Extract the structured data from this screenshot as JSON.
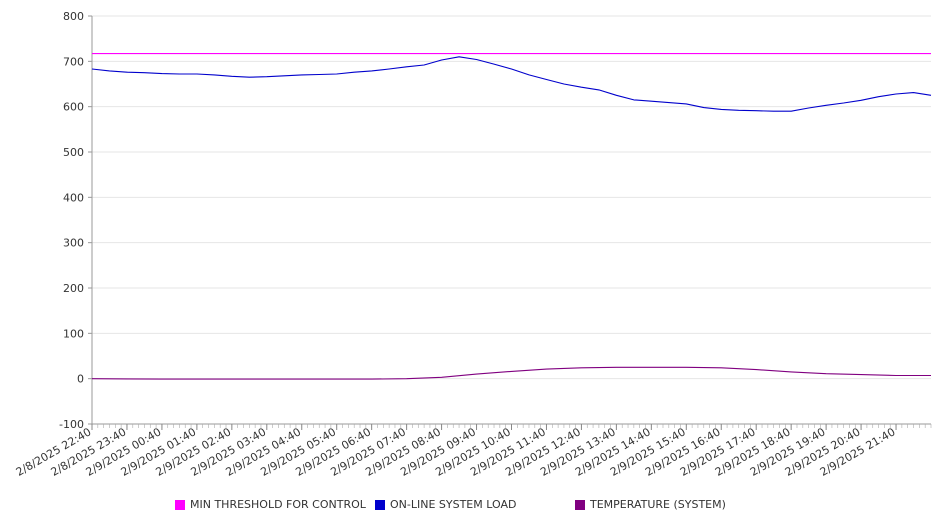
{
  "chart_data": {
    "type": "line",
    "title": "",
    "xlabel": "",
    "ylabel": "",
    "ylim": [
      -100,
      800
    ],
    "y_ticks": [
      "800",
      "700",
      "600",
      "500",
      "400",
      "300",
      "200",
      "100",
      "0",
      "-100"
    ],
    "x_tick_labels": [
      "2/8/2025 22:40",
      "2/8/2025 23:40",
      "2/9/2025 00:40",
      "2/9/2025 01:40",
      "2/9/2025 02:40",
      "2/9/2025 03:40",
      "2/9/2025 04:40",
      "2/9/2025 05:40",
      "2/9/2025 06:40",
      "2/9/2025 07:40",
      "2/9/2025 08:40",
      "2/9/2025 09:40",
      "2/9/2025 10:40",
      "2/9/2025 11:40",
      "2/9/2025 12:40",
      "2/9/2025 13:40",
      "2/9/2025 14:40",
      "2/9/2025 15:40",
      "2/9/2025 16:40",
      "2/9/2025 17:40",
      "2/9/2025 18:40",
      "2/9/2025 19:40",
      "2/9/2025 20:40",
      "2/9/2025 21:40"
    ],
    "grid": true,
    "legend_position": "bottom",
    "series": [
      {
        "name": "MIN THRESHOLD FOR CONTROL",
        "color": "#ff00ff",
        "x": [
          "2/8/2025 22:40",
          "2/9/2025 22:40"
        ],
        "values": [
          717,
          717
        ]
      },
      {
        "name": "ON-LINE SYSTEM LOAD",
        "color": "#0000cc",
        "x": [
          "2/8/2025 22:40",
          "2/8/2025 23:10",
          "2/8/2025 23:40",
          "2/9/2025 00:10",
          "2/9/2025 00:40",
          "2/9/2025 01:10",
          "2/9/2025 01:40",
          "2/9/2025 02:10",
          "2/9/2025 02:40",
          "2/9/2025 03:10",
          "2/9/2025 03:40",
          "2/9/2025 04:10",
          "2/9/2025 04:40",
          "2/9/2025 05:10",
          "2/9/2025 05:40",
          "2/9/2025 06:10",
          "2/9/2025 06:40",
          "2/9/2025 07:10",
          "2/9/2025 07:40",
          "2/9/2025 08:10",
          "2/9/2025 08:40",
          "2/9/2025 09:10",
          "2/9/2025 09:40",
          "2/9/2025 10:10",
          "2/9/2025 10:40",
          "2/9/2025 11:10",
          "2/9/2025 11:40",
          "2/9/2025 12:10",
          "2/9/2025 12:40",
          "2/9/2025 13:10",
          "2/9/2025 13:40",
          "2/9/2025 14:10",
          "2/9/2025 14:40",
          "2/9/2025 15:10",
          "2/9/2025 15:40",
          "2/9/2025 16:10",
          "2/9/2025 16:40",
          "2/9/2025 17:10",
          "2/9/2025 17:40",
          "2/9/2025 18:10",
          "2/9/2025 18:40",
          "2/9/2025 19:10",
          "2/9/2025 19:40",
          "2/9/2025 20:10",
          "2/9/2025 20:40",
          "2/9/2025 21:10",
          "2/9/2025 21:40",
          "2/9/2025 22:10",
          "2/9/2025 22:40"
        ],
        "values": [
          683,
          679,
          676,
          675,
          673,
          672,
          672,
          670,
          667,
          665,
          666,
          668,
          670,
          671,
          672,
          676,
          679,
          683,
          688,
          692,
          703,
          710,
          704,
          694,
          683,
          670,
          660,
          650,
          643,
          637,
          625,
          615,
          612,
          609,
          606,
          598,
          594,
          592,
          591,
          590,
          590,
          597,
          603,
          608,
          614,
          622,
          628,
          631,
          625
        ]
      },
      {
        "name": "TEMPERATURE (SYSTEM)",
        "color": "#800080",
        "x": [
          "2/8/2025 22:40",
          "2/9/2025 00:40",
          "2/9/2025 02:40",
          "2/9/2025 04:40",
          "2/9/2025 06:40",
          "2/9/2025 07:40",
          "2/9/2025 08:40",
          "2/9/2025 09:40",
          "2/9/2025 10:40",
          "2/9/2025 11:40",
          "2/9/2025 12:40",
          "2/9/2025 13:40",
          "2/9/2025 14:40",
          "2/9/2025 15:40",
          "2/9/2025 16:40",
          "2/9/2025 17:40",
          "2/9/2025 18:40",
          "2/9/2025 19:40",
          "2/9/2025 20:40",
          "2/9/2025 21:40",
          "2/9/2025 22:40"
        ],
        "values": [
          0,
          -1,
          -1,
          -1,
          -1,
          0,
          3,
          10,
          16,
          21,
          24,
          25,
          25,
          25,
          24,
          20,
          15,
          11,
          9,
          7,
          7
        ]
      }
    ]
  }
}
